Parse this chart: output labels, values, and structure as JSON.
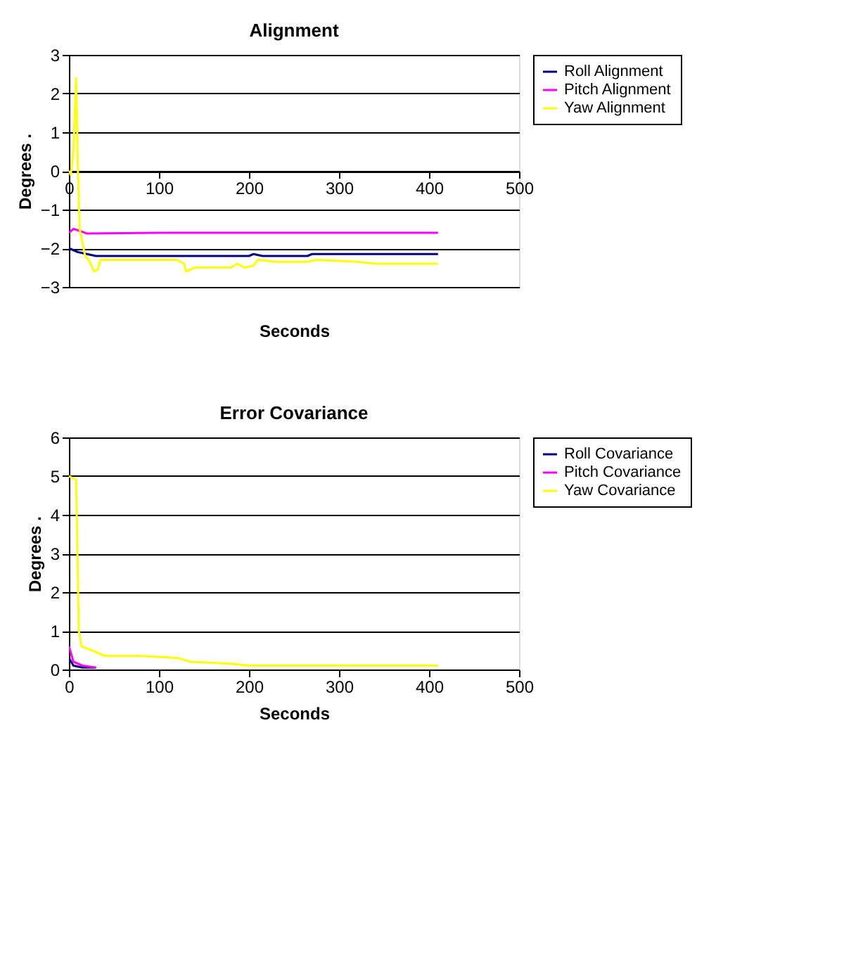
{
  "chart_data": [
    {
      "type": "line",
      "title": "Alignment",
      "xlabel": "Seconds",
      "ylabel": "Degrees .",
      "xlim": [
        0,
        500
      ],
      "xticks": [
        0,
        100,
        200,
        300,
        400,
        500
      ],
      "ylim": [
        -3,
        3
      ],
      "yticks": [
        -3,
        -2,
        -1,
        0,
        1,
        2,
        3
      ],
      "grid": "y",
      "legend": "right",
      "line_style": "solid",
      "marker": "none",
      "series": [
        {
          "name": "Roll Alignment",
          "color": "#000080",
          "x": [
            0,
            10,
            20,
            30,
            100,
            200,
            205,
            215,
            265,
            270,
            410
          ],
          "values": [
            -2.0,
            -2.1,
            -2.15,
            -2.2,
            -2.2,
            -2.2,
            -2.15,
            -2.2,
            -2.2,
            -2.15,
            -2.15
          ]
        },
        {
          "name": "Pitch Alignment",
          "color": "#ff00ff",
          "x": [
            0,
            5,
            12,
            20,
            100,
            410
          ],
          "values": [
            -1.6,
            -1.5,
            -1.55,
            -1.62,
            -1.6,
            -1.6
          ]
        },
        {
          "name": "Yaw Alignment",
          "color": "#ffff00",
          "x": [
            0,
            2,
            5,
            8,
            10,
            12,
            18,
            22,
            28,
            32,
            35,
            120,
            128,
            130,
            140,
            180,
            187,
            195,
            205,
            210,
            230,
            265,
            275,
            320,
            340,
            410
          ],
          "values": [
            0,
            -0.1,
            0.5,
            2.4,
            0,
            -1.5,
            -2.2,
            -2.3,
            -2.6,
            -2.55,
            -2.3,
            -2.3,
            -2.4,
            -2.6,
            -2.5,
            -2.5,
            -2.4,
            -2.5,
            -2.45,
            -2.3,
            -2.35,
            -2.35,
            -2.3,
            -2.35,
            -2.4,
            -2.4
          ]
        }
      ]
    },
    {
      "type": "line",
      "title": "Error Covariance",
      "xlabel": "Seconds",
      "ylabel": "Degrees .",
      "xlim": [
        0,
        500
      ],
      "xticks": [
        0,
        100,
        200,
        300,
        400,
        500
      ],
      "ylim": [
        0,
        6
      ],
      "yticks": [
        0,
        1,
        2,
        3,
        4,
        5,
        6
      ],
      "grid": "y",
      "legend": "right",
      "line_style": "solid",
      "marker": "none",
      "series": [
        {
          "name": "Roll Covariance",
          "color": "#000080",
          "x": [
            0,
            5,
            15,
            30
          ],
          "values": [
            0.3,
            0.1,
            0.05,
            0.05
          ]
        },
        {
          "name": "Pitch Covariance",
          "color": "#ff00ff",
          "x": [
            0,
            5,
            15,
            30
          ],
          "values": [
            0.6,
            0.2,
            0.1,
            0.05
          ]
        },
        {
          "name": "Yaw Covariance",
          "color": "#ffff00",
          "x": [
            0,
            8,
            11,
            14,
            25,
            40,
            80,
            120,
            135,
            180,
            200,
            410
          ],
          "values": [
            5.0,
            4.9,
            1.0,
            0.6,
            0.5,
            0.35,
            0.35,
            0.3,
            0.2,
            0.15,
            0.1,
            0.1
          ]
        }
      ]
    }
  ]
}
